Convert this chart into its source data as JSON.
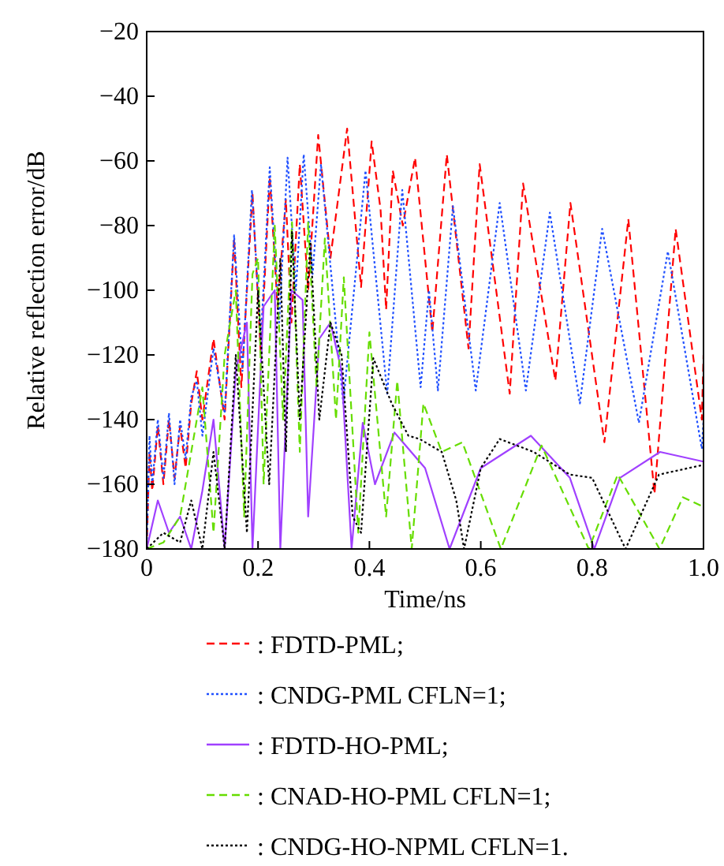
{
  "chart_data": {
    "type": "line",
    "xlabel": "Time/ns",
    "ylabel": "Relative reflection error/dB",
    "xlim": [
      0,
      1
    ],
    "ylim": [
      -180,
      -20
    ],
    "xticks": [
      0,
      0.2,
      0.4,
      0.6,
      0.8,
      {
        "value": 1,
        "label": "1.0"
      }
    ],
    "yticks": [
      {
        "value": -180,
        "label": "−180"
      },
      {
        "value": -160,
        "label": "−160"
      },
      {
        "value": -140,
        "label": "−140"
      },
      {
        "value": -120,
        "label": "−120"
      },
      {
        "value": -100,
        "label": "−100"
      },
      {
        "value": -80,
        "label": "−80"
      },
      {
        "value": -60,
        "label": "−60"
      },
      {
        "value": -40,
        "label": "−40"
      },
      {
        "value": -20,
        "label": "−20"
      }
    ],
    "legend": "bottom",
    "series": [
      {
        "name": ": FDTD-PML;",
        "color": "#ff0000",
        "line_style": "dashed",
        "x": [
          0,
          0.005,
          0.01,
          0.02,
          0.03,
          0.04,
          0.05,
          0.06,
          0.07,
          0.08,
          0.09,
          0.1,
          0.12,
          0.14,
          0.157,
          0.17,
          0.19,
          0.205,
          0.221,
          0.235,
          0.25,
          0.26,
          0.275,
          0.29,
          0.308,
          0.33,
          0.36,
          0.385,
          0.404,
          0.42,
          0.43,
          0.442,
          0.46,
          0.482,
          0.513,
          0.539,
          0.578,
          0.598,
          0.652,
          0.676,
          0.734,
          0.761,
          0.822,
          0.865,
          0.912,
          0.95,
          0.997,
          1.0
        ],
        "values": [
          -180,
          -150,
          -162,
          -142,
          -160,
          -140,
          -158,
          -142,
          -155,
          -135,
          -125,
          -140,
          -115,
          -140,
          -84,
          -130,
          -70,
          -120,
          -65,
          -105,
          -72,
          -110,
          -61,
          -100,
          -52,
          -90,
          -50,
          -99,
          -54,
          -75,
          -106,
          -63,
          -80,
          -59,
          -113,
          -58,
          -118,
          -61,
          -132,
          -67,
          -128,
          -73,
          -147,
          -78,
          -163,
          -81,
          -140,
          -120
        ]
      },
      {
        "name": ": CNDG-PML CFLN=1;",
        "color": "#2050ff",
        "line_style": "dotted",
        "x": [
          0,
          0.005,
          0.01,
          0.02,
          0.03,
          0.04,
          0.05,
          0.06,
          0.07,
          0.08,
          0.09,
          0.1,
          0.12,
          0.14,
          0.157,
          0.172,
          0.189,
          0.205,
          0.221,
          0.238,
          0.253,
          0.268,
          0.282,
          0.298,
          0.313,
          0.353,
          0.393,
          0.432,
          0.459,
          0.492,
          0.507,
          0.523,
          0.55,
          0.591,
          0.634,
          0.681,
          0.724,
          0.778,
          0.818,
          0.884,
          0.936,
          0.997,
          1.0
        ],
        "values": [
          -180,
          -145,
          -160,
          -140,
          -158,
          -138,
          -160,
          -140,
          -152,
          -133,
          -128,
          -145,
          -118,
          -138,
          -83,
          -125,
          -69,
          -115,
          -62,
          -110,
          -59,
          -100,
          -58,
          -95,
          -61,
          -135,
          -63,
          -132,
          -69,
          -130,
          -100,
          -131,
          -74,
          -131,
          -73,
          -131,
          -76,
          -135,
          -81,
          -141,
          -88,
          -149,
          -140
        ]
      },
      {
        "name": ": FDTD-HO-PML;",
        "color": "#a040ff",
        "line_style": "solid",
        "x": [
          0,
          0.02,
          0.04,
          0.06,
          0.08,
          0.1,
          0.12,
          0.14,
          0.16,
          0.18,
          0.19,
          0.21,
          0.23,
          0.24,
          0.26,
          0.28,
          0.29,
          0.31,
          0.33,
          0.35,
          0.368,
          0.388,
          0.41,
          0.445,
          0.5,
          0.544,
          0.6,
          0.69,
          0.76,
          0.804,
          0.85,
          0.922,
          1.0
        ],
        "values": [
          -180,
          -165,
          -175,
          -170,
          -180,
          -162,
          -140,
          -180,
          -125,
          -110,
          -180,
          -105,
          -100,
          -180,
          -100,
          -103,
          -170,
          -115,
          -110,
          -125,
          -180,
          -141,
          -160,
          -144,
          -155,
          -180,
          -155,
          -145,
          -158,
          -180,
          -158,
          -150,
          -153
        ]
      },
      {
        "name": ": CNAD-HO-PML CFLN=1;",
        "color": "#66dd00",
        "line_style": "dashed",
        "x": [
          0,
          0.03,
          0.06,
          0.08,
          0.1,
          0.12,
          0.14,
          0.16,
          0.175,
          0.19,
          0.2,
          0.21,
          0.23,
          0.245,
          0.261,
          0.275,
          0.29,
          0.305,
          0.32,
          0.34,
          0.354,
          0.38,
          0.4,
          0.43,
          0.45,
          0.476,
          0.497,
          0.53,
          0.567,
          0.636,
          0.709,
          0.794,
          0.846,
          0.921,
          0.963,
          1.0
        ],
        "values": [
          -180,
          -178,
          -170,
          -150,
          -130,
          -175,
          -120,
          -100,
          -170,
          -95,
          -90,
          -160,
          -80,
          -140,
          -79,
          -150,
          -79,
          -130,
          -84,
          -140,
          -96,
          -175,
          -113,
          -170,
          -128,
          -180,
          -135,
          -150,
          -147,
          -180,
          -148,
          -180,
          -157,
          -180,
          -164,
          -167
        ]
      },
      {
        "name": ": CNDG-HO-NPML CFLN=1.",
        "color": "#000000",
        "line_style": "dotted",
        "x": [
          0,
          0.03,
          0.06,
          0.08,
          0.1,
          0.12,
          0.14,
          0.16,
          0.18,
          0.2,
          0.22,
          0.24,
          0.25,
          0.261,
          0.275,
          0.294,
          0.31,
          0.33,
          0.35,
          0.37,
          0.385,
          0.407,
          0.44,
          0.47,
          0.49,
          0.53,
          0.556,
          0.57,
          0.6,
          0.634,
          0.695,
          0.76,
          0.8,
          0.86,
          0.92,
          1.0
        ],
        "values": [
          -180,
          -175,
          -178,
          -165,
          -180,
          -150,
          -180,
          -120,
          -175,
          -100,
          -160,
          -90,
          -150,
          -82,
          -140,
          -85,
          -140,
          -110,
          -120,
          -170,
          -175,
          -121,
          -135,
          -145,
          -146,
          -150,
          -165,
          -180,
          -155,
          -146,
          -150,
          -157,
          -158,
          -180,
          -157,
          -154
        ]
      }
    ]
  }
}
